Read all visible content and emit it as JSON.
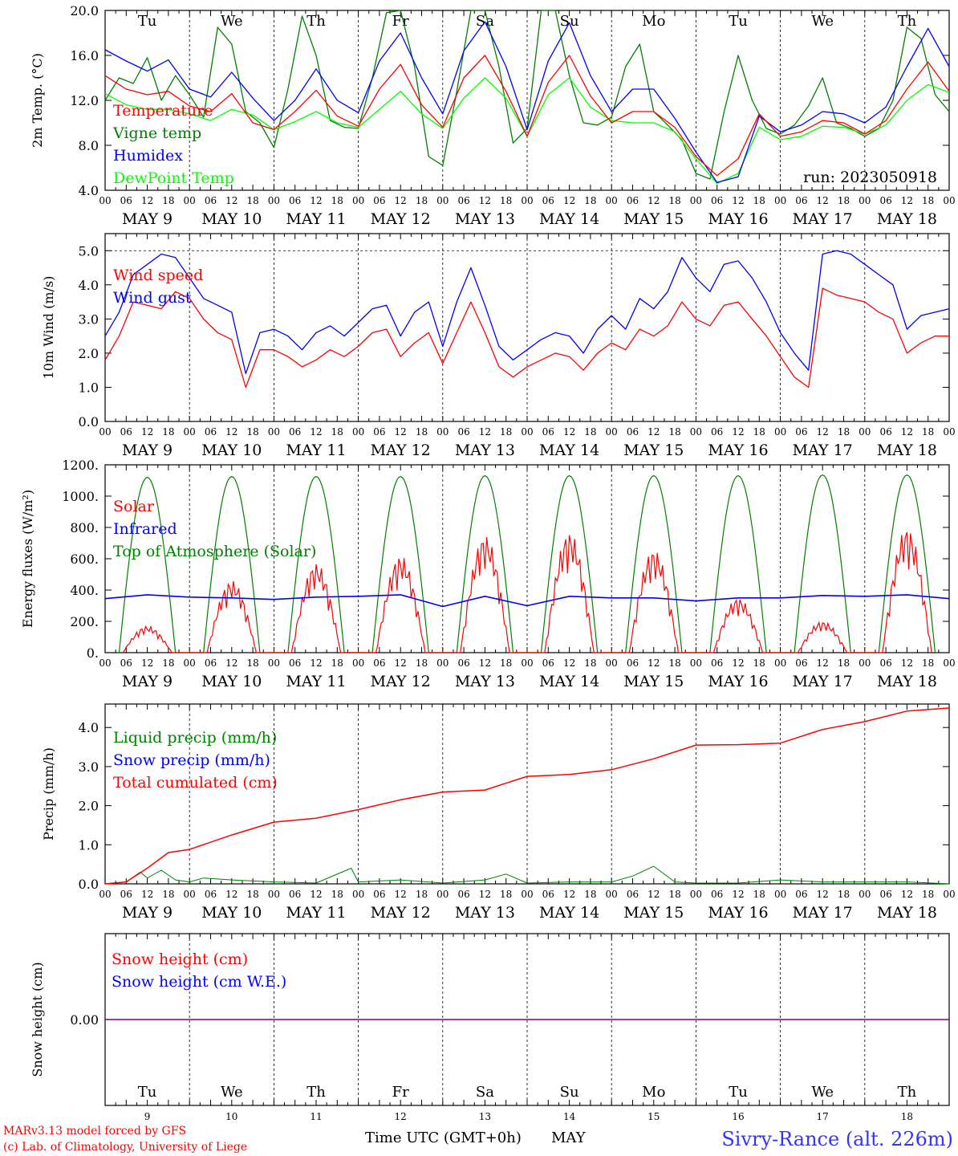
{
  "colors": {
    "red": "#ff0000",
    "green": "#008000",
    "blue": "#0000ff",
    "lime": "#00ff00",
    "purple": "#7f007f",
    "title_blue": "#3333ff"
  },
  "day_names": [
    "Tu",
    "We",
    "Th",
    "Fr",
    "Sa",
    "Su",
    "Mo",
    "Tu",
    "We",
    "Th"
  ],
  "weekend_day_indexes": [
    4,
    5
  ],
  "date_labels": [
    "MAY  9",
    "MAY 10",
    "MAY 11",
    "MAY 12",
    "MAY 13",
    "MAY 14",
    "MAY 15",
    "MAY 16",
    "MAY 17",
    "MAY 18"
  ],
  "hour_labels": [
    "00",
    "06",
    "12",
    "18"
  ],
  "final_hour_label": "00",
  "day_numbers": [
    "9",
    "10",
    "11",
    "12",
    "13",
    "14",
    "15",
    "16",
    "17",
    "18"
  ],
  "footer": {
    "model": "MARv3.13 model forced by GFS",
    "lab": "(c) Lab. of Climatology, University of Liege",
    "axis_title": "Time UTC (GMT+0h)",
    "month": "MAY",
    "station": "Sivry-Rance (alt. 226m)"
  },
  "chart_data": [
    {
      "id": "temp",
      "type": "line",
      "ylabel": "2m Temp. (°C)",
      "ylim": [
        4.0,
        20.0
      ],
      "yticks": [
        "20.0",
        "16.0",
        "12.0",
        "8.0",
        "4.0"
      ],
      "run_label": "run: 2023050918",
      "legend": [
        "Temperature",
        "Vigne temp",
        "Humidex",
        "DewPoint Temp"
      ],
      "x_unit": "hours since MAY 9 00 UTC",
      "series": [
        {
          "name": "Temperature",
          "color": "red",
          "x": [
            0,
            6,
            12,
            18,
            24,
            30,
            36,
            42,
            48,
            54,
            60,
            66,
            72,
            78,
            84,
            90,
            96,
            102,
            108,
            114,
            120,
            126,
            132,
            138,
            144,
            150,
            156,
            162,
            168,
            174,
            180,
            186,
            192,
            198,
            204,
            210,
            216,
            222,
            228,
            234,
            240
          ],
          "y": [
            14.2,
            13.0,
            12.5,
            12.8,
            11.5,
            11.0,
            12.6,
            10.0,
            9.4,
            11.0,
            12.9,
            10.6,
            9.7,
            13.0,
            15.2,
            11.6,
            9.6,
            14.0,
            16.0,
            12.8,
            8.8,
            13.6,
            16.0,
            12.4,
            10.0,
            11.0,
            11.0,
            9.6,
            7.0,
            5.3,
            6.8,
            10.8,
            8.8,
            9.2,
            10.2,
            10.0,
            9.0,
            10.2,
            13.0,
            15.4,
            12.8
          ]
        },
        {
          "name": "Vigne temp",
          "color": "green",
          "x": [
            0,
            4,
            8,
            12,
            16,
            20,
            24,
            28,
            32,
            36,
            40,
            44,
            48,
            52,
            56,
            60,
            64,
            68,
            72,
            76,
            80,
            84,
            88,
            92,
            96,
            100,
            104,
            108,
            112,
            116,
            120,
            124,
            128,
            132,
            136,
            140,
            144,
            148,
            152,
            156,
            160,
            164,
            168,
            172,
            176,
            180,
            184,
            188,
            192,
            196,
            200,
            204,
            208,
            212,
            216,
            220,
            224,
            228,
            232,
            236,
            240
          ],
          "y": [
            12.0,
            14.0,
            13.5,
            15.8,
            12.0,
            14.2,
            12.5,
            10.5,
            18.5,
            17.0,
            11.0,
            10.0,
            7.8,
            13.0,
            19.5,
            16.0,
            10.2,
            9.6,
            9.5,
            14.0,
            19.8,
            20.0,
            15.0,
            7.0,
            6.2,
            12.8,
            20.0,
            20.0,
            15.0,
            8.2,
            9.5,
            20.0,
            20.0,
            14.2,
            10.0,
            9.8,
            10.5,
            15.0,
            17.0,
            11.0,
            9.8,
            8.5,
            5.5,
            5.0,
            11.0,
            16.0,
            12.0,
            9.5,
            9.0,
            9.8,
            11.5,
            14.0,
            10.0,
            9.5,
            8.8,
            9.5,
            12.0,
            18.5,
            17.5,
            12.5,
            11.0
          ]
        },
        {
          "name": "Humidex",
          "color": "blue",
          "x": [
            0,
            6,
            12,
            18,
            24,
            30,
            36,
            42,
            48,
            54,
            60,
            66,
            72,
            78,
            84,
            90,
            96,
            102,
            108,
            114,
            120,
            126,
            132,
            138,
            144,
            150,
            156,
            162,
            168,
            174,
            180,
            186,
            192,
            198,
            204,
            210,
            216,
            222,
            228,
            234,
            240
          ],
          "y": [
            16.5,
            15.5,
            14.6,
            15.6,
            13.0,
            12.3,
            14.5,
            12.2,
            10.2,
            12.0,
            14.8,
            12.0,
            10.9,
            15.5,
            18.0,
            14.0,
            10.8,
            16.4,
            19.0,
            15.0,
            9.4,
            15.5,
            18.9,
            14.2,
            11.0,
            13.0,
            13.0,
            10.4,
            7.4,
            4.7,
            5.2,
            10.6,
            9.2,
            9.8,
            11.0,
            10.8,
            10.0,
            11.4,
            15.0,
            18.4,
            15.0
          ]
        },
        {
          "name": "DewPoint Temp",
          "color": "lime",
          "x": [
            0,
            6,
            12,
            18,
            24,
            30,
            36,
            42,
            48,
            54,
            60,
            66,
            72,
            78,
            84,
            90,
            96,
            102,
            108,
            114,
            120,
            126,
            132,
            138,
            144,
            150,
            156,
            162,
            168,
            174,
            180,
            186,
            192,
            198,
            204,
            210,
            216,
            222,
            228,
            234,
            240
          ],
          "y": [
            12.6,
            11.6,
            11.2,
            11.2,
            10.8,
            10.2,
            11.2,
            10.7,
            9.4,
            10.1,
            11.0,
            10.0,
            9.6,
            11.2,
            12.8,
            10.8,
            9.5,
            12.2,
            14.0,
            12.2,
            8.8,
            12.5,
            14.0,
            11.4,
            10.2,
            10.0,
            10.0,
            9.2,
            6.8,
            4.6,
            5.5,
            9.6,
            8.5,
            8.8,
            9.7,
            9.6,
            9.0,
            9.8,
            12.0,
            13.4,
            12.7
          ]
        }
      ]
    },
    {
      "id": "wind",
      "type": "line",
      "ylabel": "10m Wind (m/s)",
      "ylim": [
        0.0,
        5.5
      ],
      "yticks": [
        "5.0",
        "4.0",
        "3.0",
        "2.0",
        "1.0",
        "0.0"
      ],
      "reference_line": 5.0,
      "legend": [
        "Wind speed",
        "Wind gust"
      ],
      "x_unit": "hours since MAY 9 00 UTC",
      "series": [
        {
          "name": "Wind speed",
          "color": "red",
          "x": [
            0,
            4,
            8,
            12,
            16,
            20,
            24,
            28,
            32,
            36,
            40,
            44,
            48,
            52,
            56,
            60,
            64,
            68,
            72,
            76,
            80,
            84,
            88,
            92,
            96,
            100,
            104,
            108,
            112,
            116,
            120,
            124,
            128,
            132,
            136,
            140,
            144,
            148,
            152,
            156,
            160,
            164,
            168,
            172,
            176,
            180,
            184,
            188,
            192,
            196,
            200,
            204,
            208,
            212,
            216,
            220,
            224,
            228,
            232,
            236,
            240
          ],
          "y": [
            1.8,
            2.5,
            3.5,
            3.4,
            3.3,
            3.8,
            3.6,
            3.0,
            2.6,
            2.4,
            1.0,
            2.1,
            2.1,
            1.9,
            1.6,
            1.8,
            2.1,
            1.9,
            2.2,
            2.6,
            2.7,
            1.9,
            2.3,
            2.6,
            1.7,
            2.6,
            3.5,
            2.6,
            1.6,
            1.3,
            1.6,
            1.8,
            2.0,
            1.9,
            1.5,
            2.0,
            2.3,
            2.1,
            2.7,
            2.5,
            2.8,
            3.5,
            3.0,
            2.8,
            3.4,
            3.5,
            3.0,
            2.5,
            1.9,
            1.3,
            1.0,
            3.9,
            3.7,
            3.6,
            3.5,
            3.2,
            3.0,
            2.0,
            2.3,
            2.5,
            2.5
          ]
        },
        {
          "name": "Wind gust",
          "color": "blue",
          "x": [
            0,
            4,
            8,
            12,
            16,
            20,
            24,
            28,
            32,
            36,
            40,
            44,
            48,
            52,
            56,
            60,
            64,
            68,
            72,
            76,
            80,
            84,
            88,
            92,
            96,
            100,
            104,
            108,
            112,
            116,
            120,
            124,
            128,
            132,
            136,
            140,
            144,
            148,
            152,
            156,
            160,
            164,
            168,
            172,
            176,
            180,
            184,
            188,
            192,
            196,
            200,
            204,
            208,
            212,
            216,
            220,
            224,
            228,
            232,
            236,
            240
          ],
          "y": [
            2.5,
            3.2,
            4.3,
            4.6,
            4.9,
            4.8,
            4.2,
            3.6,
            3.4,
            3.2,
            1.4,
            2.6,
            2.7,
            2.5,
            2.1,
            2.6,
            2.8,
            2.5,
            2.9,
            3.3,
            3.4,
            2.5,
            3.2,
            3.5,
            2.2,
            3.5,
            4.5,
            3.4,
            2.2,
            1.8,
            2.1,
            2.4,
            2.6,
            2.5,
            2.0,
            2.7,
            3.1,
            2.7,
            3.6,
            3.3,
            3.8,
            4.8,
            4.2,
            3.8,
            4.6,
            4.7,
            4.2,
            3.5,
            2.6,
            2.0,
            1.5,
            4.9,
            5.0,
            4.9,
            4.6,
            4.3,
            4.0,
            2.7,
            3.1,
            3.2,
            3.3
          ]
        }
      ]
    },
    {
      "id": "flux",
      "type": "line",
      "ylabel": "Energy fluxes (W/m²)",
      "ylim": [
        0,
        1200
      ],
      "yticks": [
        "1200.",
        "1000.",
        "800.",
        "600.",
        "400.",
        "200.",
        "0."
      ],
      "legend": [
        "Solar",
        "Infrared",
        "Top of Atmosphere (Solar)"
      ],
      "x_unit": "hours since MAY 9 00 UTC",
      "toa_daily_peak": [
        1120,
        1125,
        1125,
        1125,
        1130,
        1130,
        1130,
        1130,
        1135,
        1135
      ],
      "solar_daily_peak": [
        170,
        460,
        570,
        620,
        750,
        770,
        660,
        350,
        200,
        800
      ],
      "series": [
        {
          "name": "Infrared",
          "color": "blue",
          "x": [
            0,
            12,
            24,
            36,
            48,
            60,
            72,
            84,
            96,
            108,
            120,
            132,
            144,
            156,
            168,
            180,
            192,
            204,
            216,
            228,
            240
          ],
          "y": [
            345,
            370,
            355,
            350,
            340,
            355,
            360,
            370,
            295,
            360,
            300,
            360,
            350,
            350,
            330,
            350,
            350,
            365,
            360,
            370,
            345
          ]
        }
      ]
    },
    {
      "id": "precip",
      "type": "line",
      "ylabel": "Precip (mm/h)",
      "ylim": [
        0,
        4.6
      ],
      "yticks": [
        "4.0",
        "3.0",
        "2.0",
        "1.0",
        "0.0"
      ],
      "legend": [
        "Liquid precip (mm/h)",
        "Snow precip (mm/h)",
        "Total cumulated (cm)"
      ],
      "x_unit": "hours since MAY 9 00 UTC",
      "series": [
        {
          "name": "Total cumulated (cm)",
          "color": "red",
          "x": [
            0,
            6,
            12,
            18,
            24,
            36,
            48,
            60,
            72,
            84,
            96,
            108,
            120,
            132,
            144,
            156,
            168,
            180,
            192,
            204,
            216,
            228,
            240
          ],
          "y": [
            0,
            0.05,
            0.4,
            0.8,
            0.88,
            1.25,
            1.58,
            1.68,
            1.9,
            2.15,
            2.35,
            2.4,
            2.75,
            2.8,
            2.92,
            3.2,
            3.55,
            3.56,
            3.6,
            3.95,
            4.15,
            4.42,
            4.5
          ]
        },
        {
          "name": "Liquid precip (mm/h)",
          "color": "green",
          "x": [
            0,
            6,
            10,
            12,
            16,
            20,
            24,
            28,
            36,
            48,
            60,
            70,
            72,
            84,
            96,
            108,
            114,
            120,
            132,
            144,
            150,
            156,
            162,
            168,
            180,
            192,
            204,
            216,
            228,
            240
          ],
          "y": [
            0,
            0.05,
            0.3,
            0.15,
            0.35,
            0.1,
            0.05,
            0.15,
            0.1,
            0.05,
            0.02,
            0.4,
            0.05,
            0.1,
            0.02,
            0.1,
            0.25,
            0.02,
            0.05,
            0.05,
            0.2,
            0.45,
            0.05,
            0.02,
            0.02,
            0.1,
            0.05,
            0.05,
            0.05,
            0
          ]
        }
      ]
    },
    {
      "id": "snow",
      "type": "line",
      "ylabel": "Snow height (cm)",
      "ylim": [
        -1,
        1
      ],
      "yticks": [
        "0.00"
      ],
      "legend": [
        "Snow height (cm)",
        "Snow height (cm W.E.)"
      ],
      "x_unit": "hours since MAY 9 00 UTC",
      "series": [
        {
          "name": "Snow height (cm)",
          "color": "purple",
          "x": [
            0,
            240
          ],
          "y": [
            0,
            0
          ]
        }
      ]
    }
  ]
}
